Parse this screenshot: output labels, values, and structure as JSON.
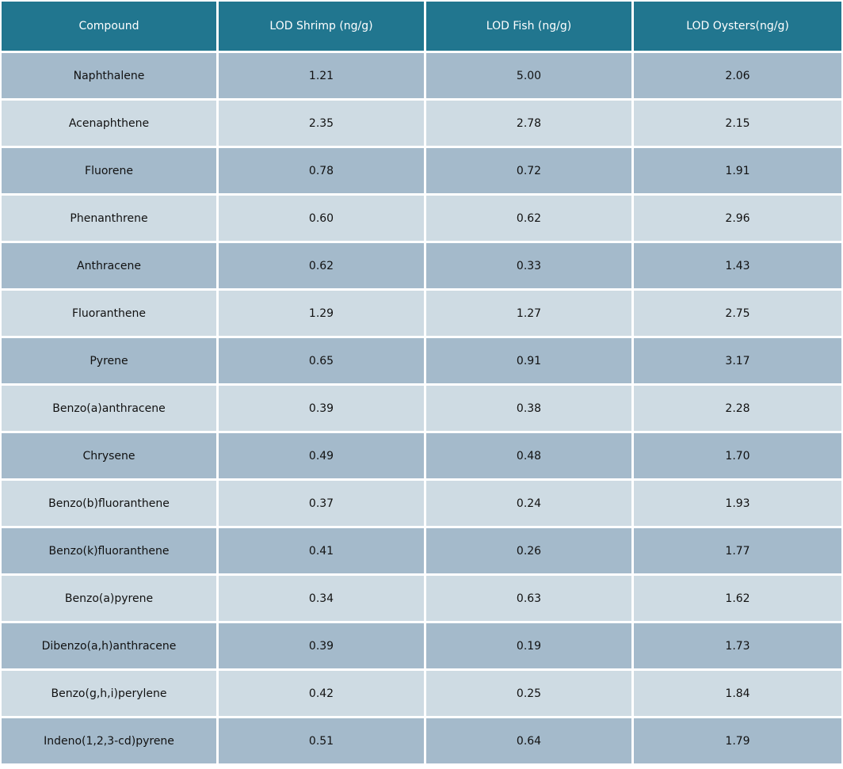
{
  "chart_data": {
    "type": "table",
    "title": "",
    "columns": [
      "Compound",
      "LOD Shrimp (ng/g)",
      "LOD Fish (ng/g)",
      "LOD Oysters(ng/g)"
    ],
    "rows": [
      [
        "Naphthalene",
        "1.21",
        "5.00",
        "2.06"
      ],
      [
        "Acenaphthene",
        "2.35",
        "2.78",
        "2.15"
      ],
      [
        "Fluorene",
        "0.78",
        "0.72",
        "1.91"
      ],
      [
        "Phenanthrene",
        "0.60",
        "0.62",
        "2.96"
      ],
      [
        "Anthracene",
        "0.62",
        "0.33",
        "1.43"
      ],
      [
        "Fluoranthene",
        "1.29",
        "1.27",
        "2.75"
      ],
      [
        "Pyrene",
        "0.65",
        "0.91",
        "3.17"
      ],
      [
        "Benzo(a)anthracene",
        "0.39",
        "0.38",
        "2.28"
      ],
      [
        "Chrysene",
        "0.49",
        "0.48",
        "1.70"
      ],
      [
        "Benzo(b)fluoranthene",
        "0.37",
        "0.24",
        "1.93"
      ],
      [
        "Benzo(k)fluoranthene",
        "0.41",
        "0.26",
        "1.77"
      ],
      [
        "Benzo(a)pyrene",
        "0.34",
        "0.63",
        "1.62"
      ],
      [
        "Dibenzo(a,h)anthracene",
        "0.39",
        "0.19",
        "1.73"
      ],
      [
        "Benzo(g,h,i)perylene",
        "0.42",
        "0.25",
        "1.84"
      ],
      [
        "Indeno(1,2,3-cd)pyrene",
        "0.51",
        "0.64",
        "1.79"
      ]
    ]
  },
  "colors": {
    "header_bg": "#21768f",
    "header_text": "#ffffff",
    "row_dark": "#a4bacb",
    "row_light": "#cedbe3",
    "cell_text": "#111111",
    "grid_line": "#ffffff"
  }
}
